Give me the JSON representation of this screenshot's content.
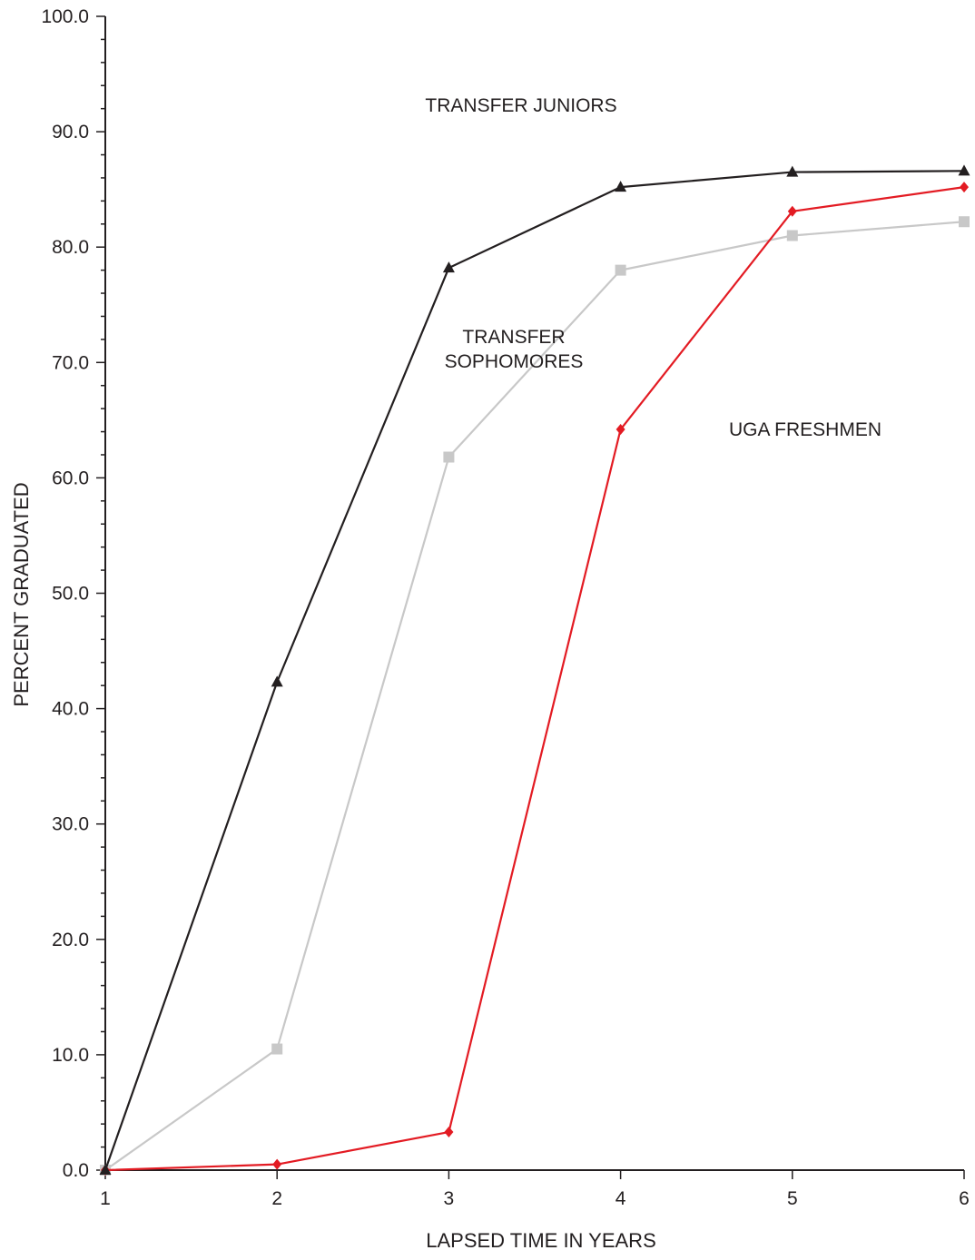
{
  "chart_data": {
    "type": "line",
    "title": "",
    "xlabel": "LAPSED TIME IN YEARS",
    "ylabel": "PERCENT GRADUATED",
    "x": [
      1,
      2,
      3,
      4,
      5,
      6
    ],
    "xlim": [
      1,
      6
    ],
    "ylim": [
      0,
      100
    ],
    "x_tick_labels": [
      "1",
      "2",
      "3",
      "4",
      "5",
      "6"
    ],
    "y_tick_labels": [
      "0.0",
      "10.0",
      "20.0",
      "30.0",
      "40.0",
      "50.0",
      "60.0",
      "70.0",
      "80.0",
      "90.0",
      "100.0"
    ],
    "grid": false,
    "legend": "none (series labeled directly on plot)",
    "series": [
      {
        "name": "TRANSFER JUNIORS",
        "label_lines": [
          "TRANSFER JUNIORS"
        ],
        "values": [
          0.0,
          42.3,
          78.2,
          85.2,
          86.5,
          86.6
        ],
        "color": "#231f20",
        "marker": "triangle"
      },
      {
        "name": "TRANSFER SOPHOMORES",
        "label_lines": [
          "TRANSFER",
          "SOPHOMORES"
        ],
        "values": [
          0.0,
          10.5,
          61.8,
          78.0,
          81.0,
          82.2
        ],
        "color": "#c8c8c8",
        "marker": "square"
      },
      {
        "name": "UGA FRESHMEN",
        "label_lines": [
          "UGA FRESHMEN"
        ],
        "values": [
          0.0,
          0.5,
          3.3,
          64.2,
          83.1,
          85.2
        ],
        "color": "#e31b23",
        "marker": "diamond"
      }
    ]
  }
}
